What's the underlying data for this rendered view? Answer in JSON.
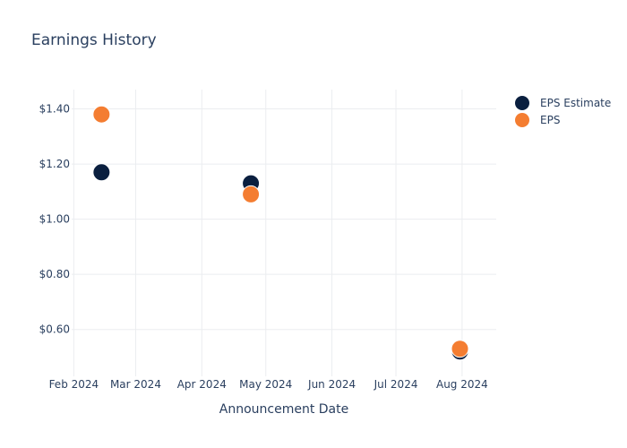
{
  "chart_data": {
    "type": "scatter",
    "title": "Earnings History",
    "xlabel": "Announcement Date",
    "ylabel": "",
    "x_type": "date",
    "xlim": [
      "2024-01-31",
      "2024-08-17"
    ],
    "ylim": [
      0.43,
      1.47
    ],
    "x_ticks": [
      {
        "value": "2024-02-01",
        "label": "Feb 2024"
      },
      {
        "value": "2024-03-01",
        "label": "Mar 2024"
      },
      {
        "value": "2024-04-01",
        "label": "Apr 2024"
      },
      {
        "value": "2024-05-01",
        "label": "May 2024"
      },
      {
        "value": "2024-06-01",
        "label": "Jun 2024"
      },
      {
        "value": "2024-07-01",
        "label": "Jul 2024"
      },
      {
        "value": "2024-08-01",
        "label": "Aug 2024"
      }
    ],
    "y_ticks": [
      {
        "value": 0.6,
        "label": "$0.60"
      },
      {
        "value": 0.8,
        "label": "$0.80"
      },
      {
        "value": 1.0,
        "label": "$1.00"
      },
      {
        "value": 1.2,
        "label": "$1.20"
      },
      {
        "value": 1.4,
        "label": "$1.40"
      }
    ],
    "grid": true,
    "legend_position": "top-right",
    "series": [
      {
        "name": "EPS Estimate",
        "color": "#0a1f3f",
        "points": [
          {
            "x": "2024-02-14",
            "y": 1.17
          },
          {
            "x": "2024-04-24",
            "y": 1.13
          },
          {
            "x": "2024-07-31",
            "y": 0.52
          }
        ]
      },
      {
        "name": "EPS",
        "color": "#f47d31",
        "points": [
          {
            "x": "2024-02-14",
            "y": 1.38
          },
          {
            "x": "2024-04-24",
            "y": 1.09
          },
          {
            "x": "2024-07-31",
            "y": 0.53
          }
        ]
      }
    ]
  }
}
